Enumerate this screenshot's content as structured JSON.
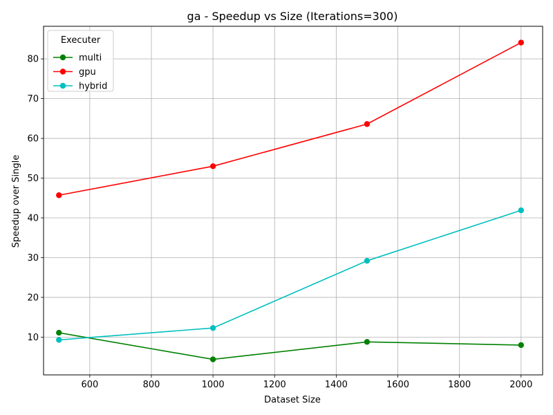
{
  "chart_data": {
    "type": "line",
    "title": "ga - Speedup vs Size (Iterations=300)",
    "xlabel": "Dataset Size",
    "ylabel": "Speedup over Single",
    "x": [
      500,
      1000,
      1500,
      2000
    ],
    "xlim": [
      450,
      2070
    ],
    "ylim": [
      0.5,
      88.2
    ],
    "xticks": [
      600,
      800,
      1000,
      1200,
      1400,
      1600,
      1800,
      2000
    ],
    "yticks": [
      10,
      20,
      30,
      40,
      50,
      60,
      70,
      80
    ],
    "grid": true,
    "legend": {
      "title": "Executer",
      "placement": "top-left"
    },
    "series": [
      {
        "name": "multi",
        "color": "#008000",
        "values": [
          11.1,
          4.4,
          8.8,
          8.0
        ]
      },
      {
        "name": "gpu",
        "color": "#ff0000",
        "values": [
          45.7,
          53.0,
          63.6,
          84.1
        ]
      },
      {
        "name": "hybrid",
        "color": "#00bfbf",
        "values": [
          9.3,
          12.3,
          29.2,
          41.9
        ]
      }
    ]
  }
}
